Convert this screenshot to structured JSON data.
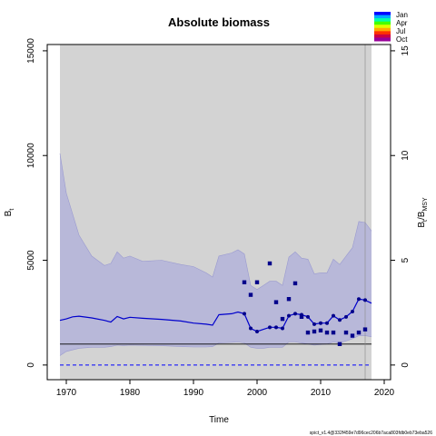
{
  "chart_data": {
    "type": "line",
    "title": "Absolute biomass",
    "xlabel": "Time",
    "ylabel": "B",
    "ylabel_sub": "t",
    "y2label": "B",
    "y2label_sub": "t",
    "y2label_sep": "/",
    "y2label_denom": "B",
    "y2label_denom_sub": "MSY",
    "xlim": [
      1967,
      2021
    ],
    "ylim": [
      -700,
      15300
    ],
    "xticks": [
      1970,
      1980,
      1990,
      2000,
      2010,
      2020
    ],
    "yticks": [
      0,
      5000,
      10000,
      15000
    ],
    "y2ticks": [
      0,
      5,
      10,
      15
    ],
    "y2_scale": 1000,
    "background_period": [
      1969,
      2018
    ],
    "background_color": "#d3d3d3",
    "bmsy": 1000,
    "ci_color": "#b8b8d9",
    "line_color": "#0000cc",
    "footer": "spict_v1.4@332f459e7d96cec206b7aca803fdb0eb73eba526",
    "legend": {
      "labels": [
        "Jan",
        "Apr",
        "Jul",
        "Oct"
      ],
      "colors": [
        "#0000ff",
        "#00aaff",
        "#00ffaa",
        "#44ff00",
        "#ddff00",
        "#ffaa00",
        "#ff3300",
        "#cc0044",
        "#990099"
      ]
    },
    "series": [
      {
        "name": "estimate",
        "x": [
          1969,
          1970,
          1971,
          1972,
          1974,
          1976,
          1977,
          1978,
          1979,
          1980,
          1982,
          1985,
          1988,
          1990,
          1992,
          1993,
          1994,
          1996,
          1997,
          1998,
          1999,
          2000,
          2001,
          2002,
          2003,
          2004,
          2005,
          2006,
          2007,
          2008,
          2009,
          2010,
          2011,
          2012,
          2013,
          2014,
          2015,
          2016,
          2017,
          2018
        ],
        "y": [
          2130,
          2200,
          2300,
          2330,
          2250,
          2130,
          2050,
          2320,
          2200,
          2280,
          2230,
          2180,
          2100,
          2000,
          1950,
          1900,
          2400,
          2450,
          2530,
          2450,
          1750,
          1600,
          1700,
          1800,
          1800,
          1750,
          2350,
          2450,
          2400,
          2300,
          1950,
          2000,
          2000,
          2350,
          2150,
          2300,
          2550,
          3150,
          3100,
          2950
        ]
      },
      {
        "name": "upper",
        "x": [
          1969,
          1970,
          1972,
          1974,
          1976,
          1977,
          1978,
          1979,
          1980,
          1982,
          1985,
          1988,
          1990,
          1992,
          1993,
          1994,
          1996,
          1997,
          1998,
          1999,
          2000,
          2001,
          2002,
          2003,
          2004,
          2005,
          2006,
          2007,
          2008,
          2009,
          2010,
          2011,
          2012,
          2013,
          2014,
          2015,
          2016,
          2017,
          2018
        ],
        "y": [
          10100,
          8200,
          6200,
          5200,
          4750,
          4850,
          5400,
          5100,
          5200,
          4950,
          5000,
          4800,
          4700,
          4400,
          4200,
          5200,
          5350,
          5500,
          5300,
          3800,
          3600,
          3800,
          4000,
          4000,
          3800,
          5150,
          5400,
          5100,
          5050,
          4350,
          4400,
          4400,
          5050,
          4800,
          5200,
          5600,
          6850,
          6800,
          6400
        ]
      },
      {
        "name": "lower",
        "x": [
          1969,
          1970,
          1972,
          1974,
          1976,
          1977,
          1978,
          1979,
          1980,
          1982,
          1985,
          1988,
          1990,
          1992,
          1993,
          1994,
          1996,
          1997,
          1998,
          1999,
          2000,
          2001,
          2002,
          2003,
          2004,
          2005,
          2006,
          2007,
          2008,
          2009,
          2010,
          2011,
          2012,
          2013,
          2014,
          2015,
          2016,
          2017,
          2018
        ],
        "y": [
          450,
          650,
          800,
          850,
          850,
          880,
          950,
          930,
          950,
          940,
          920,
          880,
          860,
          860,
          880,
          1050,
          1080,
          1100,
          1050,
          850,
          800,
          800,
          850,
          850,
          850,
          1100,
          1100,
          1050,
          1000,
          950,
          980,
          1000,
          1100,
          1050,
          1150,
          1250,
          1400,
          1400,
          1350
        ]
      },
      {
        "name": "index",
        "x": [
          1998,
          1999,
          2000,
          2002,
          2003,
          2004,
          2005,
          2006,
          2007,
          2008,
          2009,
          2010,
          2011,
          2012,
          2013,
          2014,
          2015,
          2016,
          2017
        ],
        "y": [
          3950,
          3350,
          3950,
          4850,
          3000,
          2200,
          3150,
          3900,
          2300,
          1550,
          1600,
          1650,
          1550,
          1550,
          1000,
          1550,
          1400,
          1550,
          1700
        ]
      }
    ]
  }
}
